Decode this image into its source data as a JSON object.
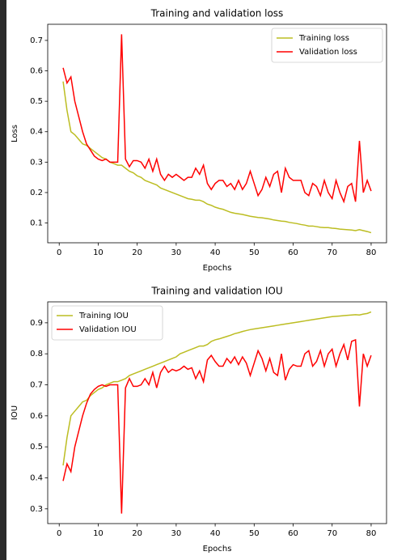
{
  "chart_data": [
    {
      "type": "line",
      "title": "Training and validation loss",
      "xlabel": "Epochs",
      "ylabel": "Loss",
      "x": [
        1,
        2,
        3,
        4,
        5,
        6,
        7,
        8,
        9,
        10,
        11,
        12,
        13,
        14,
        15,
        16,
        17,
        18,
        19,
        20,
        21,
        22,
        23,
        24,
        25,
        26,
        27,
        28,
        29,
        30,
        31,
        32,
        33,
        34,
        35,
        36,
        37,
        38,
        39,
        40,
        41,
        42,
        43,
        44,
        45,
        46,
        47,
        48,
        49,
        50,
        51,
        52,
        53,
        54,
        55,
        56,
        57,
        58,
        59,
        60,
        61,
        62,
        63,
        64,
        65,
        66,
        67,
        68,
        69,
        70,
        71,
        72,
        73,
        74,
        75,
        76,
        77,
        78,
        79,
        80
      ],
      "series": [
        {
          "name": "Training loss",
          "color": "#bcbd22",
          "values": [
            0.565,
            0.47,
            0.4,
            0.39,
            0.375,
            0.36,
            0.355,
            0.345,
            0.335,
            0.325,
            0.315,
            0.31,
            0.3,
            0.295,
            0.29,
            0.29,
            0.28,
            0.27,
            0.265,
            0.255,
            0.25,
            0.24,
            0.235,
            0.23,
            0.225,
            0.215,
            0.21,
            0.205,
            0.2,
            0.195,
            0.19,
            0.185,
            0.18,
            0.178,
            0.175,
            0.175,
            0.17,
            0.162,
            0.158,
            0.152,
            0.148,
            0.145,
            0.14,
            0.135,
            0.132,
            0.13,
            0.128,
            0.125,
            0.122,
            0.12,
            0.118,
            0.117,
            0.115,
            0.113,
            0.11,
            0.108,
            0.106,
            0.105,
            0.102,
            0.1,
            0.098,
            0.095,
            0.093,
            0.09,
            0.09,
            0.088,
            0.086,
            0.085,
            0.085,
            0.083,
            0.082,
            0.08,
            0.079,
            0.078,
            0.077,
            0.075,
            0.078,
            0.075,
            0.072,
            0.068
          ]
        },
        {
          "name": "Validation loss",
          "color": "#ff0000",
          "values": [
            0.61,
            0.56,
            0.58,
            0.5,
            0.45,
            0.4,
            0.36,
            0.34,
            0.32,
            0.31,
            0.305,
            0.31,
            0.3,
            0.3,
            0.3,
            0.72,
            0.31,
            0.285,
            0.305,
            0.305,
            0.3,
            0.28,
            0.31,
            0.27,
            0.31,
            0.26,
            0.24,
            0.26,
            0.25,
            0.26,
            0.25,
            0.24,
            0.25,
            0.25,
            0.28,
            0.26,
            0.29,
            0.23,
            0.21,
            0.23,
            0.24,
            0.24,
            0.22,
            0.23,
            0.21,
            0.24,
            0.21,
            0.23,
            0.27,
            0.23,
            0.19,
            0.21,
            0.25,
            0.22,
            0.26,
            0.27,
            0.2,
            0.28,
            0.25,
            0.24,
            0.24,
            0.24,
            0.2,
            0.19,
            0.23,
            0.22,
            0.19,
            0.24,
            0.2,
            0.18,
            0.24,
            0.2,
            0.17,
            0.22,
            0.23,
            0.17,
            0.37,
            0.2,
            0.24,
            0.205
          ]
        }
      ],
      "xlim": [
        -2.95,
        83.95
      ],
      "ylim": [
        0.035,
        0.753
      ],
      "xticks": [
        0,
        10,
        20,
        30,
        40,
        50,
        60,
        70,
        80
      ],
      "yticks": [
        0.1,
        0.2,
        0.3,
        0.4,
        0.5,
        0.6,
        0.7
      ],
      "legend": "upper right"
    },
    {
      "type": "line",
      "title": "Training and validation IOU",
      "xlabel": "Epochs",
      "ylabel": "IOU",
      "x": [
        1,
        2,
        3,
        4,
        5,
        6,
        7,
        8,
        9,
        10,
        11,
        12,
        13,
        14,
        15,
        16,
        17,
        18,
        19,
        20,
        21,
        22,
        23,
        24,
        25,
        26,
        27,
        28,
        29,
        30,
        31,
        32,
        33,
        34,
        35,
        36,
        37,
        38,
        39,
        40,
        41,
        42,
        43,
        44,
        45,
        46,
        47,
        48,
        49,
        50,
        51,
        52,
        53,
        54,
        55,
        56,
        57,
        58,
        59,
        60,
        61,
        62,
        63,
        64,
        65,
        66,
        67,
        68,
        69,
        70,
        71,
        72,
        73,
        74,
        75,
        76,
        77,
        78,
        79,
        80
      ],
      "series": [
        {
          "name": "Training IOU",
          "color": "#bcbd22",
          "values": [
            0.44,
            0.53,
            0.6,
            0.615,
            0.63,
            0.645,
            0.65,
            0.665,
            0.675,
            0.685,
            0.69,
            0.7,
            0.705,
            0.71,
            0.71,
            0.715,
            0.72,
            0.73,
            0.735,
            0.74,
            0.745,
            0.75,
            0.755,
            0.76,
            0.765,
            0.77,
            0.775,
            0.78,
            0.785,
            0.79,
            0.8,
            0.805,
            0.81,
            0.815,
            0.82,
            0.825,
            0.825,
            0.83,
            0.84,
            0.845,
            0.848,
            0.852,
            0.856,
            0.86,
            0.865,
            0.868,
            0.872,
            0.875,
            0.878,
            0.88,
            0.882,
            0.884,
            0.886,
            0.888,
            0.89,
            0.892,
            0.894,
            0.896,
            0.898,
            0.9,
            0.902,
            0.904,
            0.906,
            0.908,
            0.91,
            0.912,
            0.914,
            0.916,
            0.918,
            0.92,
            0.921,
            0.922,
            0.923,
            0.924,
            0.925,
            0.926,
            0.925,
            0.928,
            0.93,
            0.935
          ]
        },
        {
          "name": "Validation IOU",
          "color": "#ff0000",
          "values": [
            0.39,
            0.445,
            0.42,
            0.5,
            0.55,
            0.6,
            0.64,
            0.67,
            0.685,
            0.695,
            0.7,
            0.695,
            0.7,
            0.7,
            0.7,
            0.285,
            0.69,
            0.72,
            0.695,
            0.695,
            0.7,
            0.72,
            0.7,
            0.74,
            0.69,
            0.74,
            0.76,
            0.74,
            0.75,
            0.745,
            0.75,
            0.76,
            0.75,
            0.755,
            0.72,
            0.745,
            0.71,
            0.78,
            0.795,
            0.775,
            0.76,
            0.76,
            0.785,
            0.77,
            0.79,
            0.765,
            0.79,
            0.77,
            0.73,
            0.77,
            0.81,
            0.785,
            0.745,
            0.785,
            0.74,
            0.73,
            0.8,
            0.715,
            0.75,
            0.765,
            0.76,
            0.76,
            0.8,
            0.81,
            0.76,
            0.775,
            0.81,
            0.76,
            0.8,
            0.815,
            0.76,
            0.8,
            0.83,
            0.78,
            0.84,
            0.845,
            0.63,
            0.8,
            0.76,
            0.795
          ]
        }
      ],
      "xlim": [
        -2.95,
        83.95
      ],
      "ylim": [
        0.2525,
        0.9675
      ],
      "xticks": [
        0,
        10,
        20,
        30,
        40,
        50,
        60,
        70,
        80
      ],
      "yticks": [
        0.3,
        0.4,
        0.5,
        0.6,
        0.7,
        0.8,
        0.9
      ],
      "legend": "upper left"
    }
  ]
}
